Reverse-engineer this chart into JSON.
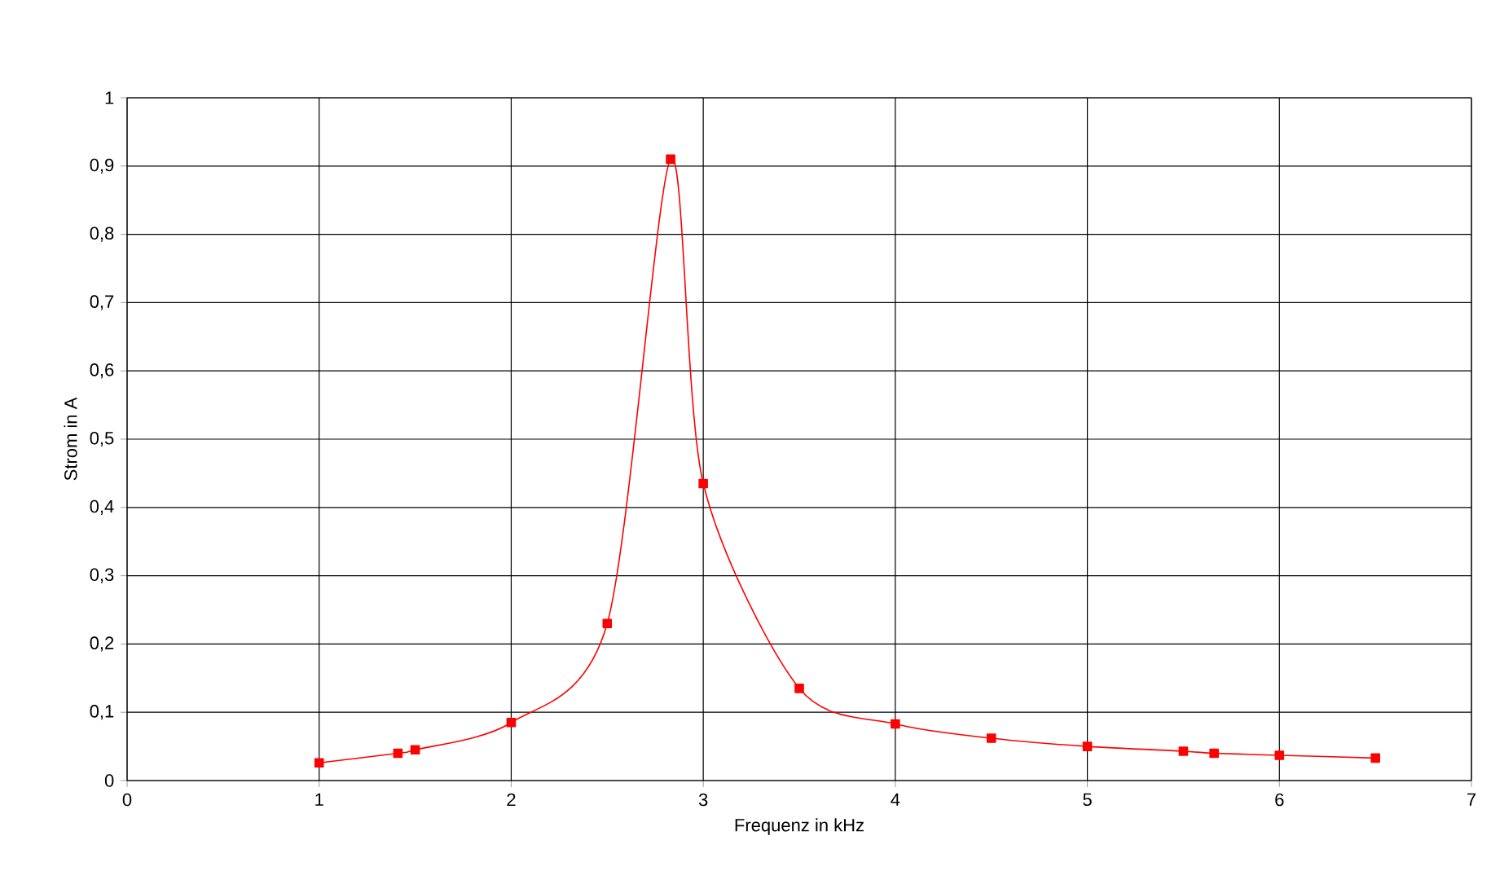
{
  "chart_data": {
    "type": "line",
    "xlabel": "Frequenz in kHz",
    "ylabel": "Strom in A",
    "x": [
      1,
      1.41,
      1.5,
      2,
      2.5,
      2.83,
      3,
      3.5,
      4,
      4.5,
      5,
      5.5,
      5.66,
      6,
      6.5
    ],
    "series": [
      {
        "color": "#ff0000",
        "values": [
          0.026,
          0.04,
          0.045,
          0.085,
          0.23,
          0.91,
          0.435,
          0.135,
          0.083,
          0.062,
          0.05,
          0.043,
          0.04,
          0.037,
          0.033
        ]
      }
    ],
    "xlim": [
      0,
      7
    ],
    "xticks": [
      0,
      1,
      2,
      3,
      4,
      5,
      6,
      7
    ],
    "ylim": [
      0,
      1
    ],
    "yticks": [
      0,
      {
        "value": 0.1,
        "label": "0,1"
      },
      {
        "value": 0.2,
        "label": "0,2"
      },
      {
        "value": 0.3,
        "label": "0,3"
      },
      {
        "value": 0.4,
        "label": "0,4"
      },
      {
        "value": 0.5,
        "label": "0,5"
      },
      {
        "value": 0.6,
        "label": "0,6"
      },
      {
        "value": 0.7,
        "label": "0,7"
      },
      {
        "value": 0.8,
        "label": "0,8"
      },
      {
        "value": 0.9,
        "label": "0,9"
      },
      1
    ],
    "grid": true,
    "marker": "square",
    "line_style": "solid"
  }
}
